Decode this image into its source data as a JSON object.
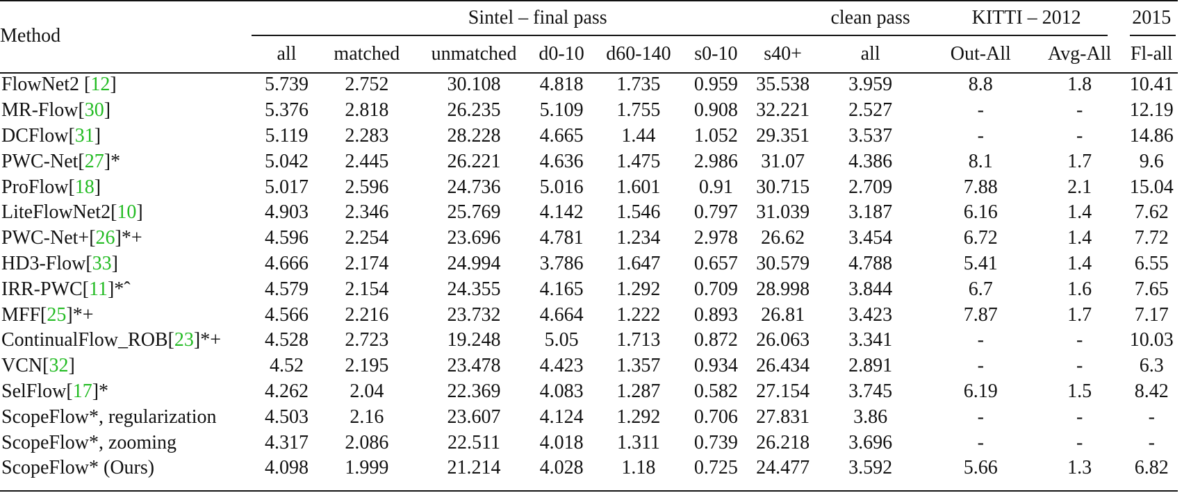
{
  "header": {
    "method": "Method",
    "group_sintel_final": "Sintel – final pass",
    "group_clean": "clean pass",
    "group_kitti2012": "KITTI – 2012",
    "group_2015": "2015",
    "cols": [
      "all",
      "matched",
      "unmatched",
      "d0-10",
      "d60-140",
      "s0-10",
      "s40+",
      "all",
      "Out-All",
      "Avg-All",
      "Fl-all"
    ]
  },
  "rows": [
    {
      "name": "FlowNet2 [",
      "ref": "12",
      "suffix": "]",
      "vals": [
        "5.739",
        "2.752",
        "30.108",
        "4.818",
        "1.735",
        "0.959",
        "35.538",
        "3.959",
        "8.8",
        "1.8",
        "10.41"
      ]
    },
    {
      "name": "MR-Flow[",
      "ref": "30",
      "suffix": "]",
      "vals": [
        "5.376",
        "2.818",
        "26.235",
        "5.109",
        "1.755",
        "0.908",
        "32.221",
        "2.527",
        "-",
        "-",
        "12.19"
      ]
    },
    {
      "name": "DCFlow[",
      "ref": "31",
      "suffix": "]",
      "vals": [
        "5.119",
        "2.283",
        "28.228",
        "4.665",
        "1.44",
        "1.052",
        "29.351",
        "3.537",
        "-",
        "-",
        "14.86"
      ]
    },
    {
      "name": "PWC-Net[",
      "ref": "27",
      "suffix": "]*",
      "vals": [
        "5.042",
        "2.445",
        "26.221",
        "4.636",
        "1.475",
        "2.986",
        "31.07",
        "4.386",
        "8.1",
        "1.7",
        "9.6"
      ]
    },
    {
      "name": "ProFlow[",
      "ref": "18",
      "suffix": "]",
      "vals": [
        "5.017",
        "2.596",
        "24.736",
        "5.016",
        "1.601",
        "0.91",
        "30.715",
        "2.709",
        "7.88",
        "2.1",
        "15.04"
      ]
    },
    {
      "name": "LiteFlowNet2[",
      "ref": "10",
      "suffix": "]",
      "vals": [
        "4.903",
        "2.346",
        "25.769",
        "4.142",
        "1.546",
        "0.797",
        "31.039",
        "3.187",
        "6.16",
        "1.4",
        "7.62"
      ]
    },
    {
      "name": "PWC-Net+[",
      "ref": "26",
      "suffix": "]*+",
      "vals": [
        "4.596",
        "2.254",
        "23.696",
        "4.781",
        "1.234",
        "2.978",
        "26.62",
        "3.454",
        "6.72",
        "1.4",
        "7.72"
      ]
    },
    {
      "name": "HD3-Flow[",
      "ref": "33",
      "suffix": "]",
      "vals": [
        "4.666",
        "2.174",
        "24.994",
        "3.786",
        "1.647",
        "0.657",
        "30.579",
        "4.788",
        "5.41",
        "1.4",
        "6.55"
      ]
    },
    {
      "name": "IRR-PWC[",
      "ref": "11",
      "suffix": "]*ˆ",
      "vals": [
        "4.579",
        "2.154",
        "24.355",
        "4.165",
        "1.292",
        "0.709",
        "28.998",
        "3.844",
        "6.7",
        "1.6",
        "7.65"
      ]
    },
    {
      "name": "MFF[",
      "ref": "25",
      "suffix": "]*+",
      "vals": [
        "4.566",
        "2.216",
        "23.732",
        "4.664",
        "1.222",
        "0.893",
        "26.81",
        "3.423",
        "7.87",
        "1.7",
        "7.17"
      ]
    },
    {
      "name": "ContinualFlow_ROB[",
      "ref": "23",
      "suffix": "]*+",
      "vals": [
        "4.528",
        "2.723",
        "19.248",
        "5.05",
        "1.713",
        "0.872",
        "26.063",
        "3.341",
        "-",
        "-",
        "10.03"
      ]
    },
    {
      "name": "VCN[",
      "ref": "32",
      "suffix": "]",
      "vals": [
        "4.52",
        "2.195",
        "23.478",
        "4.423",
        "1.357",
        "0.934",
        "26.434",
        "2.891",
        "-",
        "-",
        "6.3"
      ]
    },
    {
      "name": "SelFlow[",
      "ref": "17",
      "suffix": "]*",
      "vals": [
        "4.262",
        "2.04",
        "22.369",
        "4.083",
        "1.287",
        "0.582",
        "27.154",
        "3.745",
        "6.19",
        "1.5",
        "8.42"
      ]
    },
    {
      "name": "ScopeFlow*, regularization",
      "ref": "",
      "suffix": "",
      "vals": [
        "4.503",
        "2.16",
        "23.607",
        "4.124",
        "1.292",
        "0.706",
        "27.831",
        "3.86",
        "-",
        "-",
        "-"
      ]
    },
    {
      "name": "ScopeFlow*, zooming",
      "ref": "",
      "suffix": "",
      "vals": [
        "4.317",
        "2.086",
        "22.511",
        "4.018",
        "1.311",
        "0.739",
        "26.218",
        "3.696",
        "-",
        "-",
        "-"
      ]
    },
    {
      "name": "ScopeFlow* (Ours)",
      "ref": "",
      "suffix": "",
      "vals": [
        "4.098",
        "1.999",
        "21.214",
        "4.028",
        "1.18",
        "0.725",
        "24.477",
        "3.592",
        "5.66",
        "1.3",
        "6.82"
      ]
    }
  ],
  "bold_cells": [
    [
      1,
      7
    ],
    [
      7,
      3
    ],
    [
      7,
      8
    ],
    [
      10,
      2
    ],
    [
      11,
      10
    ],
    [
      12,
      5
    ],
    [
      15,
      0
    ],
    [
      15,
      1
    ],
    [
      15,
      4
    ],
    [
      15,
      6
    ],
    [
      15,
      9
    ]
  ],
  "colors": {
    "reference_link": "#22bb22",
    "text": "#111111"
  }
}
